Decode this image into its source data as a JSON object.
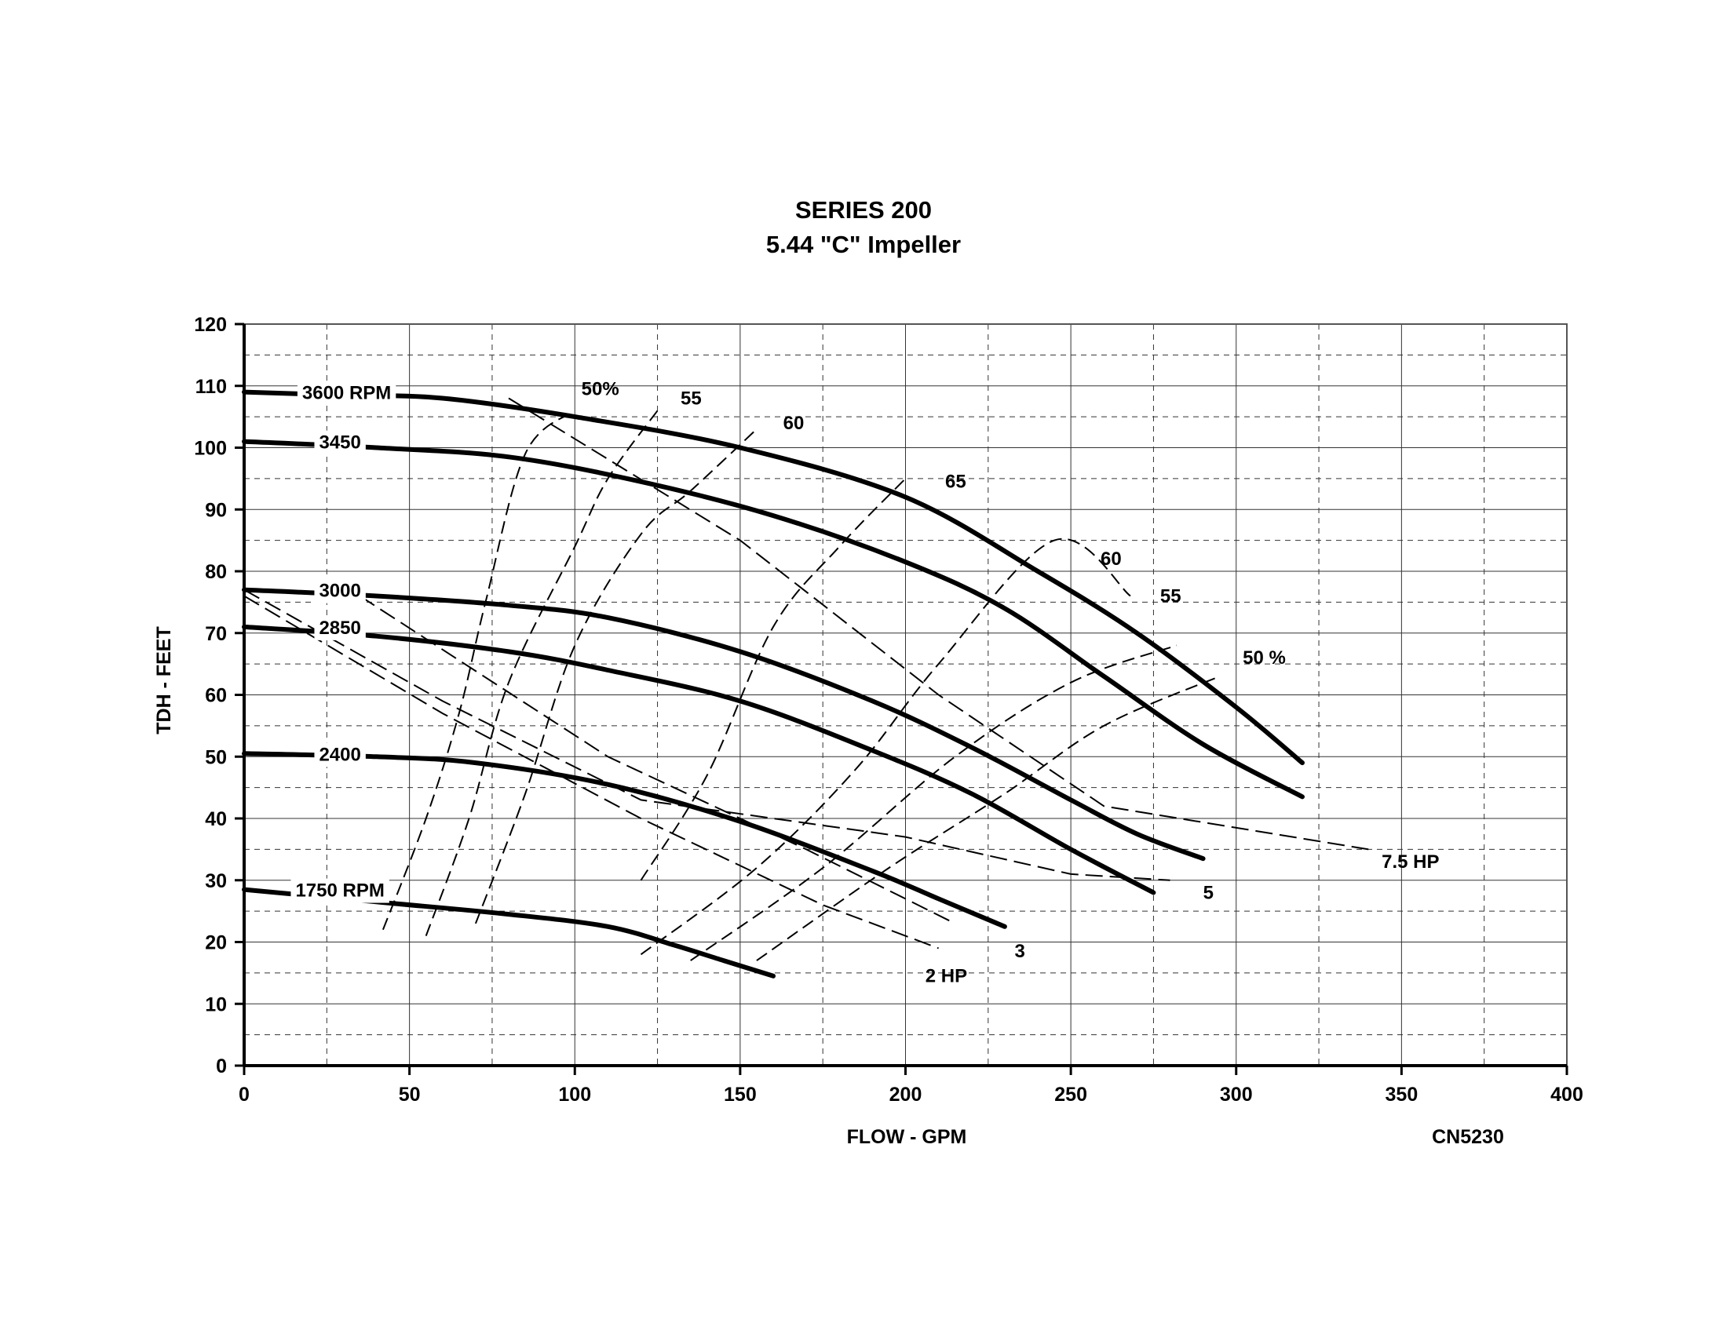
{
  "chart_data": {
    "type": "line",
    "title": "SERIES 200",
    "subtitle": "5.44 \"C\" Impeller",
    "xlabel": "FLOW - GPM",
    "ylabel": "TDH - FEET",
    "code": "CN5230",
    "xlim": [
      0,
      400
    ],
    "ylim": [
      0,
      120
    ],
    "x_ticks": [
      "0",
      "50",
      "100",
      "150",
      "200",
      "250",
      "300",
      "350",
      "400"
    ],
    "y_ticks": [
      "0",
      "10",
      "20",
      "30",
      "40",
      "50",
      "60",
      "70",
      "80",
      "90",
      "100",
      "110",
      "120"
    ],
    "grid": true,
    "series": [
      {
        "name": "3600 RPM",
        "points": [
          [
            0,
            109
          ],
          [
            30,
            108.5
          ],
          [
            60,
            108
          ],
          [
            100,
            105
          ],
          [
            150,
            100
          ],
          [
            200,
            92
          ],
          [
            240,
            80
          ],
          [
            270,
            70
          ],
          [
            300,
            58
          ],
          [
            320,
            49
          ]
        ]
      },
      {
        "name": "3450",
        "points": [
          [
            0,
            101
          ],
          [
            40,
            100
          ],
          [
            80,
            98.5
          ],
          [
            120,
            94.5
          ],
          [
            160,
            89
          ],
          [
            200,
            81.5
          ],
          [
            230,
            74
          ],
          [
            260,
            63
          ],
          [
            290,
            52
          ],
          [
            320,
            43.5
          ]
        ]
      },
      {
        "name": "3000",
        "points": [
          [
            0,
            77
          ],
          [
            40,
            76
          ],
          [
            80,
            74.5
          ],
          [
            110,
            72.5
          ],
          [
            150,
            67
          ],
          [
            190,
            59
          ],
          [
            220,
            51.5
          ],
          [
            250,
            43
          ],
          [
            270,
            37.5
          ],
          [
            290,
            33.5
          ]
        ]
      },
      {
        "name": "2850",
        "points": [
          [
            0,
            71
          ],
          [
            40,
            69.5
          ],
          [
            80,
            67
          ],
          [
            110,
            64
          ],
          [
            150,
            59
          ],
          [
            190,
            51
          ],
          [
            220,
            44
          ],
          [
            250,
            35
          ],
          [
            275,
            28
          ]
        ]
      },
      {
        "name": "2400",
        "points": [
          [
            0,
            50.5
          ],
          [
            40,
            50
          ],
          [
            70,
            49
          ],
          [
            110,
            45.5
          ],
          [
            150,
            39.5
          ],
          [
            190,
            31.5
          ],
          [
            210,
            27
          ],
          [
            230,
            22.5
          ]
        ]
      },
      {
        "name": "1750 RPM",
        "points": [
          [
            0,
            28.5
          ],
          [
            40,
            26.5
          ],
          [
            80,
            24.5
          ],
          [
            110,
            22.5
          ],
          [
            130,
            19.5
          ],
          [
            145,
            17
          ],
          [
            160,
            14.5
          ]
        ]
      }
    ],
    "efficiency_curves": [
      {
        "name": "50%",
        "points": [
          [
            42,
            22
          ],
          [
            55,
            40
          ],
          [
            65,
            57
          ],
          [
            73,
            75
          ],
          [
            85,
            99
          ],
          [
            100,
            106
          ]
        ]
      },
      {
        "name": "55",
        "points": [
          [
            55,
            21
          ],
          [
            68,
            40
          ],
          [
            80,
            62
          ],
          [
            100,
            84
          ],
          [
            110,
            95
          ],
          [
            125,
            106
          ]
        ]
      },
      {
        "name": "60",
        "points": [
          [
            70,
            23
          ],
          [
            85,
            44
          ],
          [
            100,
            68
          ],
          [
            120,
            86
          ],
          [
            135,
            93
          ],
          [
            155,
            103
          ]
        ]
      },
      {
        "name": "65",
        "points": [
          [
            120,
            30
          ],
          [
            140,
            47
          ],
          [
            160,
            71
          ],
          [
            180,
            84
          ],
          [
            200,
            95
          ]
        ]
      },
      {
        "name": "60",
        "points": [
          [
            120,
            18
          ],
          [
            155,
            32
          ],
          [
            185,
            48
          ],
          [
            210,
            65
          ],
          [
            245,
            85
          ],
          [
            268,
            76
          ]
        ]
      },
      {
        "name": "55",
        "points": [
          [
            135,
            17
          ],
          [
            175,
            32
          ],
          [
            215,
            50
          ],
          [
            250,
            62
          ],
          [
            282,
            68
          ]
        ]
      },
      {
        "name": "50 %",
        "points": [
          [
            155,
            17
          ],
          [
            195,
            32
          ],
          [
            230,
            44
          ],
          [
            260,
            55
          ],
          [
            295,
            63
          ]
        ]
      }
    ],
    "horsepower_lines": [
      {
        "name": "7.5 HP",
        "points": [
          [
            80,
            108
          ],
          [
            150,
            85
          ],
          [
            210,
            60
          ],
          [
            260,
            42
          ],
          [
            340,
            35
          ]
        ]
      },
      {
        "name": "5",
        "points": [
          [
            0,
            77
          ],
          [
            60,
            59
          ],
          [
            120,
            43
          ],
          [
            200,
            37
          ],
          [
            250,
            31
          ],
          [
            280,
            30
          ]
        ]
      },
      {
        "name": "3",
        "points": [
          [
            35,
            76
          ],
          [
            110,
            50
          ],
          [
            170,
            35
          ],
          [
            215,
            23
          ]
        ]
      },
      {
        "name": "2 HP",
        "points": [
          [
            0,
            76
          ],
          [
            60,
            57
          ],
          [
            120,
            40
          ],
          [
            175,
            26
          ],
          [
            210,
            19
          ]
        ]
      }
    ]
  }
}
